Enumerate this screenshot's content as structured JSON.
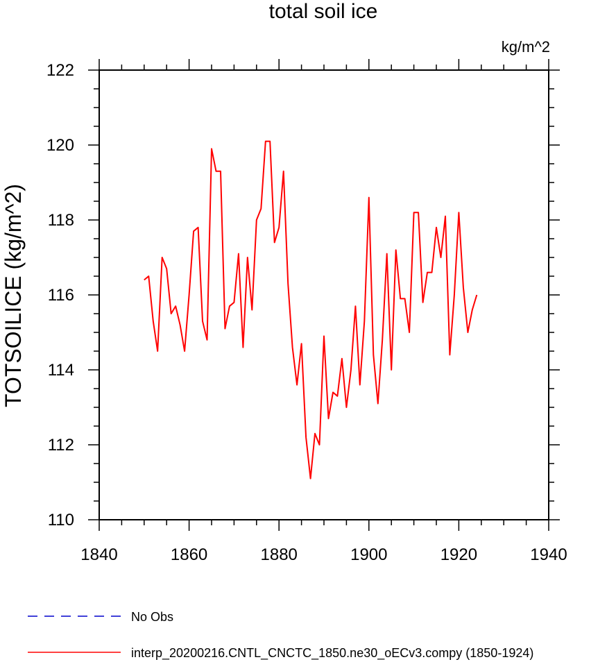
{
  "chart_data": {
    "type": "line",
    "title": "total soil ice",
    "units": "kg/m^2",
    "xlabel": "",
    "ylabel": "TOTSOILICE  (kg/m^2)",
    "xlim": [
      1840,
      1940
    ],
    "ylim": [
      110,
      122
    ],
    "xticks": [
      1840,
      1860,
      1880,
      1900,
      1920,
      1940
    ],
    "yticks": [
      110,
      112,
      114,
      116,
      118,
      120,
      122
    ],
    "grid": false,
    "legend_position": "bottom-left",
    "series": [
      {
        "name": "No Obs",
        "color": "#0000cc",
        "style": "dashed",
        "x": [],
        "values": []
      },
      {
        "name": "interp_20200216.CNTL_CNCTC_1850.ne30_oECv3.compy (1850-1924)",
        "color": "#ff0000",
        "style": "solid",
        "x": [
          1850,
          1851,
          1852,
          1853,
          1854,
          1855,
          1856,
          1857,
          1858,
          1859,
          1860,
          1861,
          1862,
          1863,
          1864,
          1865,
          1866,
          1867,
          1868,
          1869,
          1870,
          1871,
          1872,
          1873,
          1874,
          1875,
          1876,
          1877,
          1878,
          1879,
          1880,
          1881,
          1882,
          1883,
          1884,
          1885,
          1886,
          1887,
          1888,
          1889,
          1890,
          1891,
          1892,
          1893,
          1894,
          1895,
          1896,
          1897,
          1898,
          1899,
          1900,
          1901,
          1902,
          1903,
          1904,
          1905,
          1906,
          1907,
          1908,
          1909,
          1910,
          1911,
          1912,
          1913,
          1914,
          1915,
          1916,
          1917,
          1918,
          1919,
          1920,
          1921,
          1922,
          1923,
          1924
        ],
        "values": [
          116.4,
          116.5,
          115.3,
          114.5,
          117.0,
          116.7,
          115.5,
          115.7,
          115.2,
          114.5,
          116.0,
          117.7,
          117.8,
          115.3,
          114.8,
          119.9,
          119.3,
          119.3,
          115.1,
          115.7,
          115.8,
          117.1,
          114.6,
          117.0,
          115.6,
          118.0,
          118.3,
          120.1,
          120.1,
          117.4,
          117.8,
          119.3,
          116.3,
          114.6,
          113.6,
          114.7,
          112.2,
          111.1,
          112.3,
          112.0,
          114.9,
          112.7,
          113.4,
          113.3,
          114.3,
          113.0,
          114.0,
          115.7,
          113.6,
          115.3,
          118.6,
          114.4,
          113.1,
          114.8,
          117.1,
          114.0,
          117.2,
          115.9,
          115.9,
          115.0,
          118.2,
          118.2,
          115.8,
          116.6,
          116.6,
          117.8,
          117.0,
          118.1,
          114.4,
          116.0,
          118.2,
          116.2,
          115.0,
          115.6,
          116.0
        ]
      }
    ]
  }
}
